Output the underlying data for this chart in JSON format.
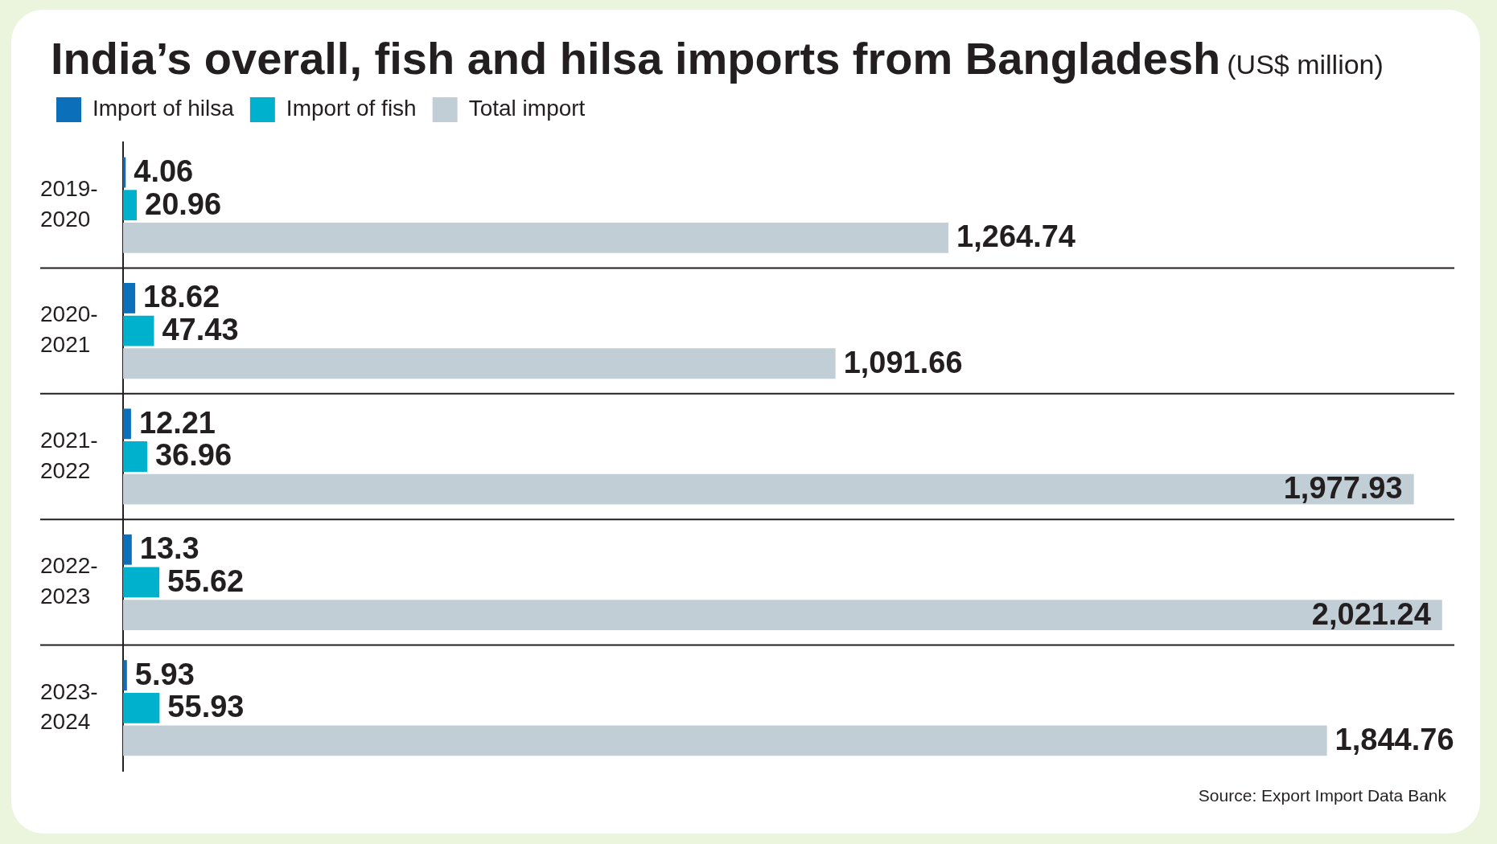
{
  "chart_data": {
    "type": "bar",
    "orientation": "horizontal",
    "title": "India’s overall, fish and hilsa imports from Bangladesh",
    "subtitle": "(US$ million)",
    "categories": [
      "2019-2020",
      "2020-2021",
      "2021-2022",
      "2022-2023",
      "2023-2024"
    ],
    "series": [
      {
        "name": "Import of hilsa",
        "color": "#0b70b9",
        "values": [
          4.06,
          18.62,
          12.21,
          13.3,
          5.93
        ]
      },
      {
        "name": "Import of fish",
        "color": "#00b1cd",
        "values": [
          20.96,
          47.43,
          36.96,
          55.62,
          55.93
        ]
      },
      {
        "name": "Total import",
        "color": "#c2ced5",
        "values": [
          1264.74,
          1091.66,
          1977.93,
          2021.24,
          1844.76
        ],
        "value_labels": [
          "1,264.74",
          "1,091.66",
          "1,977.93",
          "2,021.24",
          "1,844.76"
        ]
      }
    ],
    "xlim": [
      0,
      2040
    ],
    "tick_labels": "y",
    "data_labels": true,
    "legend": "top left",
    "grid": "y",
    "annotations": [
      "Source: Export Import Data Bank"
    ]
  }
}
